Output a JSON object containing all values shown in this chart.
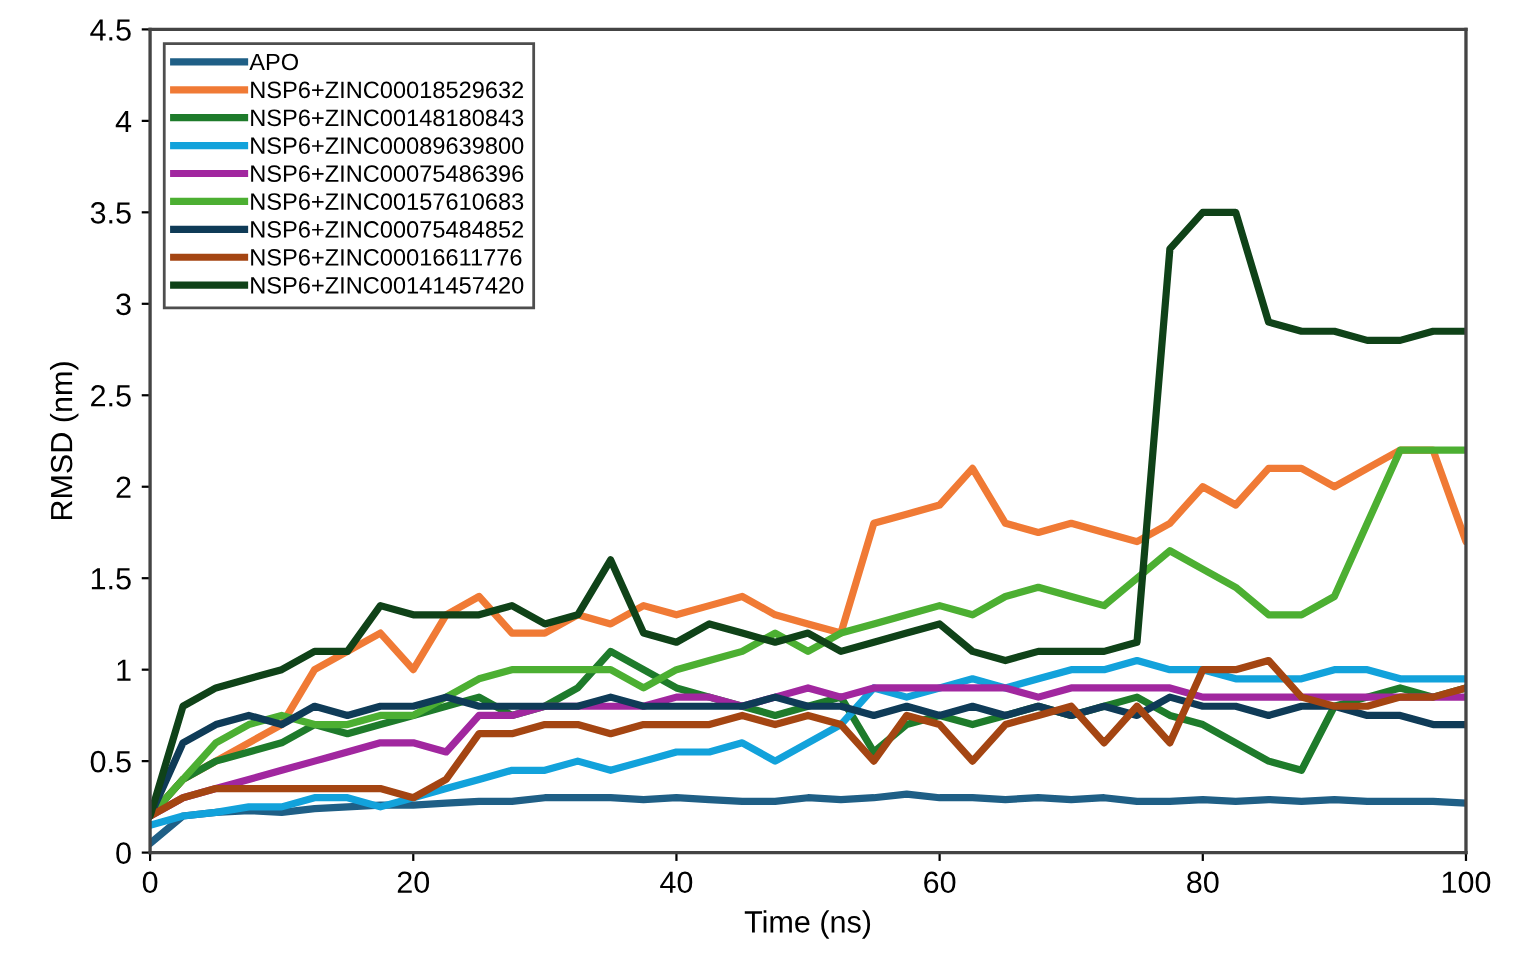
{
  "chart_data": {
    "type": "line",
    "xlabel": "Time (ns)",
    "ylabel": "RMSD (nm)",
    "x": [
      0,
      2.5,
      5,
      7.5,
      10,
      12.5,
      15,
      17.5,
      20,
      22.5,
      25,
      27.5,
      30,
      32.5,
      35,
      37.5,
      40,
      42.5,
      45,
      47.5,
      50,
      52.5,
      55,
      57.5,
      60,
      62.5,
      65,
      67.5,
      70,
      72.5,
      75,
      77.5,
      80,
      82.5,
      85,
      87.5,
      90,
      92.5,
      95,
      97.5,
      100
    ],
    "xlim": [
      0,
      100
    ],
    "xticks": [
      0,
      20,
      40,
      60,
      80,
      100
    ],
    "ylim": [
      0,
      4.5
    ],
    "yticks": [
      0,
      0.5,
      1,
      1.5,
      2,
      2.5,
      3,
      3.5,
      4,
      4.5
    ],
    "grid": false,
    "legend": "top left",
    "line_style": "solid",
    "marker": "none",
    "series": [
      {
        "name": "APO",
        "color": "#1f5f86",
        "values": [
          0.05,
          0.2,
          0.22,
          0.23,
          0.22,
          0.24,
          0.25,
          0.26,
          0.26,
          0.27,
          0.28,
          0.28,
          0.3,
          0.3,
          0.3,
          0.29,
          0.3,
          0.29,
          0.28,
          0.28,
          0.3,
          0.29,
          0.3,
          0.32,
          0.3,
          0.3,
          0.29,
          0.3,
          0.29,
          0.3,
          0.28,
          0.28,
          0.29,
          0.28,
          0.29,
          0.28,
          0.29,
          0.28,
          0.28,
          0.28,
          0.27
        ]
      },
      {
        "name": "NSP6+ZINC00018529632",
        "color": "#f07a35",
        "values": [
          0.2,
          0.4,
          0.5,
          0.6,
          0.7,
          1.0,
          1.1,
          1.2,
          1.0,
          1.3,
          1.4,
          1.2,
          1.2,
          1.3,
          1.25,
          1.35,
          1.3,
          1.35,
          1.4,
          1.3,
          1.25,
          1.2,
          1.8,
          1.85,
          1.9,
          2.1,
          1.8,
          1.75,
          1.8,
          1.75,
          1.7,
          1.8,
          2.0,
          1.9,
          2.1,
          2.1,
          2.0,
          2.1,
          2.2,
          2.2,
          1.7
        ]
      },
      {
        "name": "NSP6+ZINC00148180843",
        "color": "#1e7b2b",
        "values": [
          0.2,
          0.4,
          0.5,
          0.55,
          0.6,
          0.7,
          0.65,
          0.7,
          0.75,
          0.8,
          0.85,
          0.75,
          0.8,
          0.9,
          1.1,
          1.0,
          0.9,
          0.85,
          0.8,
          0.75,
          0.8,
          0.85,
          0.55,
          0.7,
          0.75,
          0.7,
          0.75,
          0.8,
          0.75,
          0.8,
          0.85,
          0.75,
          0.7,
          0.6,
          0.5,
          0.45,
          0.8,
          0.85,
          0.9,
          0.85,
          0.9
        ]
      },
      {
        "name": "NSP6+ZINC00089639800",
        "color": "#12a2db",
        "values": [
          0.15,
          0.2,
          0.22,
          0.25,
          0.25,
          0.3,
          0.3,
          0.25,
          0.3,
          0.35,
          0.4,
          0.45,
          0.45,
          0.5,
          0.45,
          0.5,
          0.55,
          0.55,
          0.6,
          0.5,
          0.6,
          0.7,
          0.9,
          0.85,
          0.9,
          0.95,
          0.9,
          0.95,
          1.0,
          1.0,
          1.05,
          1.0,
          1.0,
          0.95,
          0.95,
          0.95,
          1.0,
          1.0,
          0.95,
          0.95,
          0.95
        ]
      },
      {
        "name": "NSP6+ZINC00075486396",
        "color": "#a1279f",
        "values": [
          0.2,
          0.3,
          0.35,
          0.4,
          0.45,
          0.5,
          0.55,
          0.6,
          0.6,
          0.55,
          0.75,
          0.75,
          0.8,
          0.8,
          0.8,
          0.8,
          0.85,
          0.85,
          0.8,
          0.85,
          0.9,
          0.85,
          0.9,
          0.9,
          0.9,
          0.9,
          0.9,
          0.85,
          0.9,
          0.9,
          0.9,
          0.9,
          0.85,
          0.85,
          0.85,
          0.85,
          0.85,
          0.85,
          0.85,
          0.85,
          0.85
        ]
      },
      {
        "name": "NSP6+ZINC00157610683",
        "color": "#4caf32",
        "values": [
          0.2,
          0.4,
          0.6,
          0.7,
          0.75,
          0.7,
          0.7,
          0.75,
          0.75,
          0.85,
          0.95,
          1.0,
          1.0,
          1.0,
          1.0,
          0.9,
          1.0,
          1.05,
          1.1,
          1.2,
          1.1,
          1.2,
          1.25,
          1.3,
          1.35,
          1.3,
          1.4,
          1.45,
          1.4,
          1.35,
          1.5,
          1.65,
          1.55,
          1.45,
          1.3,
          1.3,
          1.4,
          1.8,
          2.2,
          2.2,
          2.2
        ]
      },
      {
        "name": "NSP6+ZINC00075484852",
        "color": "#0f3b57",
        "values": [
          0.2,
          0.6,
          0.7,
          0.75,
          0.7,
          0.8,
          0.75,
          0.8,
          0.8,
          0.85,
          0.8,
          0.8,
          0.8,
          0.8,
          0.85,
          0.8,
          0.8,
          0.8,
          0.8,
          0.85,
          0.8,
          0.8,
          0.75,
          0.8,
          0.75,
          0.8,
          0.75,
          0.8,
          0.75,
          0.8,
          0.75,
          0.85,
          0.8,
          0.8,
          0.75,
          0.8,
          0.8,
          0.75,
          0.75,
          0.7,
          0.7
        ]
      },
      {
        "name": "NSP6+ZINC00016611776",
        "color": "#a44512",
        "values": [
          0.2,
          0.3,
          0.35,
          0.35,
          0.35,
          0.35,
          0.35,
          0.35,
          0.3,
          0.4,
          0.65,
          0.65,
          0.7,
          0.7,
          0.65,
          0.7,
          0.7,
          0.7,
          0.75,
          0.7,
          0.75,
          0.7,
          0.5,
          0.75,
          0.7,
          0.5,
          0.7,
          0.75,
          0.8,
          0.6,
          0.8,
          0.6,
          1.0,
          1.0,
          1.05,
          0.85,
          0.8,
          0.8,
          0.85,
          0.85,
          0.9
        ]
      },
      {
        "name": "NSP6+ZINC00141457420",
        "color": "#0f4218",
        "values": [
          0.2,
          0.8,
          0.9,
          0.95,
          1.0,
          1.1,
          1.1,
          1.35,
          1.3,
          1.3,
          1.3,
          1.35,
          1.25,
          1.3,
          1.6,
          1.2,
          1.15,
          1.25,
          1.2,
          1.15,
          1.2,
          1.1,
          1.15,
          1.2,
          1.25,
          1.1,
          1.05,
          1.1,
          1.1,
          1.1,
          1.15,
          3.3,
          3.5,
          3.5,
          2.9,
          2.85,
          2.85,
          2.8,
          2.8,
          2.85,
          2.85
        ]
      }
    ]
  }
}
